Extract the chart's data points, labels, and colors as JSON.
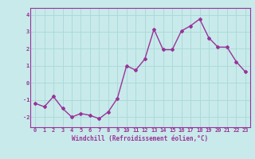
{
  "x": [
    0,
    1,
    2,
    3,
    4,
    5,
    6,
    7,
    8,
    9,
    10,
    11,
    12,
    13,
    14,
    15,
    16,
    17,
    18,
    19,
    20,
    21,
    22,
    23
  ],
  "y": [
    -1.2,
    -1.4,
    -0.8,
    -1.5,
    -2.0,
    -1.8,
    -1.9,
    -2.1,
    -1.7,
    -0.9,
    1.0,
    0.75,
    1.4,
    3.15,
    1.95,
    1.95,
    3.05,
    3.35,
    3.75,
    2.65,
    2.1,
    2.1,
    1.25,
    0.65
  ],
  "line_color": "#993399",
  "marker": "D",
  "marker_size": 2,
  "bg_color": "#c8eaea",
  "grid_color": "#aad8d8",
  "xlabel": "Windchill (Refroidissement éolien,°C)",
  "ylim": [
    -2.6,
    4.4
  ],
  "xlim": [
    -0.5,
    23.5
  ],
  "yticks": [
    -2,
    -1,
    0,
    1,
    2,
    3,
    4
  ],
  "xticks": [
    0,
    1,
    2,
    3,
    4,
    5,
    6,
    7,
    8,
    9,
    10,
    11,
    12,
    13,
    14,
    15,
    16,
    17,
    18,
    19,
    20,
    21,
    22,
    23
  ],
  "tick_color": "#993399",
  "xlabel_color": "#993399",
  "line_width": 1.0,
  "spine_color": "#993399",
  "tick_fontsize": 5,
  "xlabel_fontsize": 5.5
}
